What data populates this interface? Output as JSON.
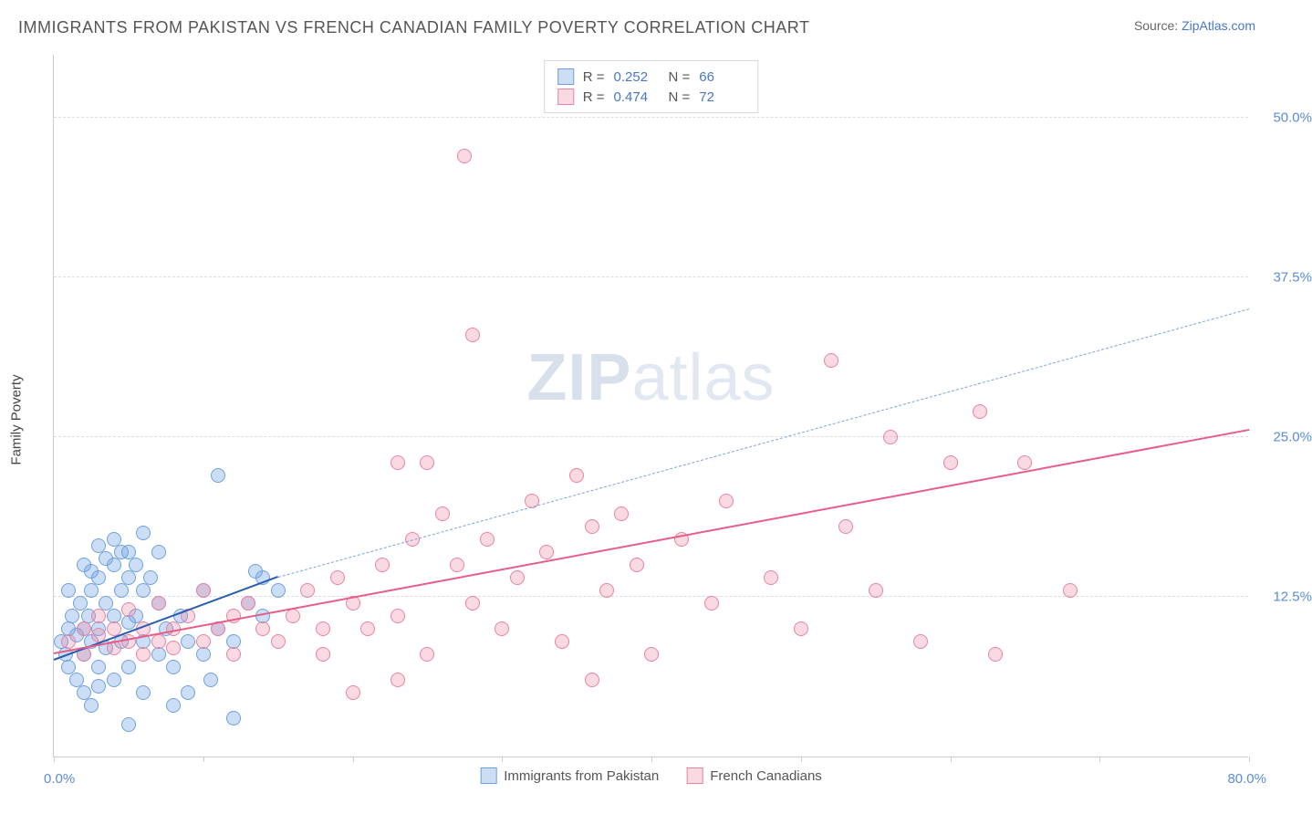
{
  "header": {
    "title": "IMMIGRANTS FROM PAKISTAN VS FRENCH CANADIAN FAMILY POVERTY CORRELATION CHART",
    "source_prefix": "Source: ",
    "source_link": "ZipAtlas.com"
  },
  "watermark": {
    "part1": "ZIP",
    "part2": "atlas"
  },
  "chart": {
    "type": "scatter",
    "y_axis_title": "Family Poverty",
    "xlim": [
      0,
      80
    ],
    "ylim": [
      0,
      55
    ],
    "x_origin_label": "0.0%",
    "x_max_label": "80.0%",
    "x_tick_positions": [
      0,
      10,
      20,
      30,
      40,
      50,
      60,
      70,
      80
    ],
    "y_gridlines": [
      {
        "value": 12.5,
        "label": "12.5%"
      },
      {
        "value": 25.0,
        "label": "25.0%"
      },
      {
        "value": 37.5,
        "label": "37.5%"
      },
      {
        "value": 50.0,
        "label": "50.0%"
      }
    ],
    "background_color": "#ffffff",
    "grid_color": "#dddddd",
    "axis_color": "#cccccc",
    "tick_label_color": "#5b8cd6",
    "series": [
      {
        "id": "pakistan",
        "label": "Immigrants from Pakistan",
        "color_fill": "rgba(110, 160, 225, 0.35)",
        "color_stroke": "#6ea0e1",
        "marker_radius": 8,
        "R_label": "R =",
        "R_value": "0.252",
        "N_label": "N =",
        "N_value": "66",
        "trend": {
          "x1": 0,
          "y1": 7.5,
          "x2": 15,
          "y2": 14.0,
          "color": "#2a5fb0",
          "width": 2.5,
          "dash": "solid",
          "ext_x2": 80,
          "ext_y2": 35.0,
          "ext_dash": "dashed",
          "ext_color": "#7aa3dd",
          "ext_width": 1.5
        },
        "points": [
          [
            0.5,
            9
          ],
          [
            0.8,
            8
          ],
          [
            1,
            10
          ],
          [
            1,
            7
          ],
          [
            1.2,
            11
          ],
          [
            1.5,
            9.5
          ],
          [
            1.5,
            6
          ],
          [
            1.8,
            12
          ],
          [
            2,
            10
          ],
          [
            2,
            8
          ],
          [
            2,
            5
          ],
          [
            2.3,
            11
          ],
          [
            2.5,
            13
          ],
          [
            2.5,
            9
          ],
          [
            2.5,
            4
          ],
          [
            3,
            14
          ],
          [
            3,
            10
          ],
          [
            3,
            7
          ],
          [
            3,
            5.5
          ],
          [
            3.5,
            15.5
          ],
          [
            3.5,
            12
          ],
          [
            3.5,
            8.5
          ],
          [
            4,
            15
          ],
          [
            4,
            11
          ],
          [
            4,
            6
          ],
          [
            4.5,
            16
          ],
          [
            4.5,
            13
          ],
          [
            4.5,
            9
          ],
          [
            5,
            14
          ],
          [
            5,
            10.5
          ],
          [
            5,
            7
          ],
          [
            5,
            2.5
          ],
          [
            5.5,
            15
          ],
          [
            5.5,
            11
          ],
          [
            6,
            13
          ],
          [
            6,
            9
          ],
          [
            6,
            5
          ],
          [
            6.5,
            14
          ],
          [
            7,
            12
          ],
          [
            7,
            8
          ],
          [
            7.5,
            10
          ],
          [
            8,
            7
          ],
          [
            8,
            4
          ],
          [
            8.5,
            11
          ],
          [
            9,
            9
          ],
          [
            9,
            5
          ],
          [
            10,
            13
          ],
          [
            10,
            8
          ],
          [
            10.5,
            6
          ],
          [
            11,
            22
          ],
          [
            11,
            10
          ],
          [
            12,
            9
          ],
          [
            12,
            3
          ],
          [
            13,
            12
          ],
          [
            13.5,
            14.5
          ],
          [
            14,
            11
          ],
          [
            14,
            14
          ],
          [
            15,
            13
          ],
          [
            2,
            15
          ],
          [
            3,
            16.5
          ],
          [
            4,
            17
          ],
          [
            5,
            16
          ],
          [
            6,
            17.5
          ],
          [
            7,
            16
          ],
          [
            1,
            13
          ],
          [
            2.5,
            14.5
          ]
        ]
      },
      {
        "id": "french",
        "label": "French Canadians",
        "color_fill": "rgba(235, 130, 160, 0.30)",
        "color_stroke": "#eb82a0",
        "marker_radius": 8,
        "R_label": "R =",
        "R_value": "0.474",
        "N_label": "N =",
        "N_value": "72",
        "trend": {
          "x1": 0,
          "y1": 8.0,
          "x2": 80,
          "y2": 25.5,
          "color": "#e85d87",
          "width": 2.5,
          "dash": "solid"
        },
        "points": [
          [
            1,
            9
          ],
          [
            2,
            8
          ],
          [
            2,
            10
          ],
          [
            3,
            9.5
          ],
          [
            3,
            11
          ],
          [
            4,
            8.5
          ],
          [
            4,
            10
          ],
          [
            5,
            9
          ],
          [
            5,
            11.5
          ],
          [
            6,
            8
          ],
          [
            6,
            10
          ],
          [
            7,
            9
          ],
          [
            7,
            12
          ],
          [
            8,
            10
          ],
          [
            8,
            8.5
          ],
          [
            9,
            11
          ],
          [
            10,
            9
          ],
          [
            10,
            13
          ],
          [
            11,
            10
          ],
          [
            12,
            11
          ],
          [
            12,
            8
          ],
          [
            13,
            12
          ],
          [
            14,
            10
          ],
          [
            15,
            9
          ],
          [
            16,
            11
          ],
          [
            17,
            13
          ],
          [
            18,
            10
          ],
          [
            18,
            8
          ],
          [
            19,
            14
          ],
          [
            20,
            12
          ],
          [
            21,
            10
          ],
          [
            22,
            15
          ],
          [
            23,
            11
          ],
          [
            23,
            23
          ],
          [
            24,
            17
          ],
          [
            25,
            23
          ],
          [
            25,
            8
          ],
          [
            26,
            19
          ],
          [
            27,
            15
          ],
          [
            27.5,
            47
          ],
          [
            28,
            12
          ],
          [
            28,
            33
          ],
          [
            29,
            17
          ],
          [
            30,
            10
          ],
          [
            31,
            14
          ],
          [
            32,
            20
          ],
          [
            33,
            16
          ],
          [
            34,
            9
          ],
          [
            35,
            22
          ],
          [
            36,
            18
          ],
          [
            36,
            6
          ],
          [
            37,
            13
          ],
          [
            38,
            19
          ],
          [
            39,
            15
          ],
          [
            40,
            8
          ],
          [
            42,
            17
          ],
          [
            44,
            12
          ],
          [
            45,
            20
          ],
          [
            48,
            14
          ],
          [
            50,
            10
          ],
          [
            52,
            31
          ],
          [
            53,
            18
          ],
          [
            55,
            13
          ],
          [
            56,
            25
          ],
          [
            58,
            9
          ],
          [
            60,
            23
          ],
          [
            62,
            27
          ],
          [
            63,
            8
          ],
          [
            65,
            23
          ],
          [
            68,
            13
          ],
          [
            20,
            5
          ],
          [
            23,
            6
          ]
        ]
      }
    ]
  },
  "legend_bottom": {
    "items": [
      {
        "swatch_fill": "rgba(110,160,225,0.35)",
        "swatch_stroke": "#6ea0e1",
        "label": "Immigrants from Pakistan"
      },
      {
        "swatch_fill": "rgba(235,130,160,0.30)",
        "swatch_stroke": "#eb82a0",
        "label": "French Canadians"
      }
    ]
  }
}
